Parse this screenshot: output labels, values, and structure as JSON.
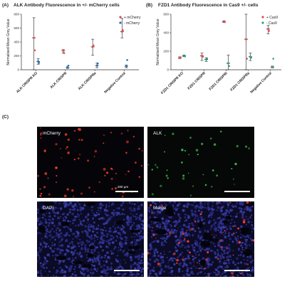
{
  "panels": {
    "a": {
      "letter": "(A)",
      "title": "ALK Antibody Fluorescence in +/- mCherry cells"
    },
    "b": {
      "letter": "(B)",
      "title": "FZD1 Antibody Fluorescence in Cas9 +/- cells"
    },
    "c": {
      "letter": "(C)"
    }
  },
  "chart_data": [
    {
      "type": "scatter",
      "ylabel": "Normalised Mean Grey Value",
      "ylim": [
        0,
        800
      ],
      "yticks": [
        0,
        200,
        400,
        600,
        800
      ],
      "categories": [
        "ALK CRISPR KO",
        "ALK CRISPR",
        "ALK CRISPRa",
        "Negative Control"
      ],
      "legend_position": "top-right",
      "colors": {
        "plus": "#d9534f",
        "minus": "#2a72b5"
      },
      "series": [
        {
          "name": "+ mCherry",
          "key": "plus",
          "means": [
            460,
            275,
            330,
            550
          ],
          "errors": [
            [
              0,
              750
            ],
            [
              240,
              290
            ],
            [
              210,
              440
            ],
            [
              460,
              740
            ]
          ],
          "extras": [
            280,
            240,
            350,
            570
          ]
        },
        {
          "name": "- mCherry",
          "key": "minus",
          "means": [
            120,
            30,
            60,
            50
          ],
          "errors": [
            [
              80,
              160
            ],
            [
              20,
              50
            ],
            [
              30,
              100
            ],
            [
              30,
              70
            ]
          ],
          "extras": [
            100,
            60,
            90,
            140
          ]
        }
      ]
    },
    {
      "type": "scatter",
      "ylabel": "Normalised Mean Grey Value",
      "ylim": [
        0,
        600
      ],
      "yticks": [
        0,
        200,
        400,
        600
      ],
      "categories": [
        "FZD1 CRISPR KO",
        "FZD1 CRISPR",
        "FZD1 CRISPRi",
        "FZD1 CRISPRa",
        "Negative Control"
      ],
      "legend_position": "top-right",
      "colors": {
        "plus": "#d9534f",
        "minus": "#2aa08a"
      },
      "series": [
        {
          "name": "+ Cas9",
          "key": "plus",
          "means": [
            130,
            150,
            520,
            330,
            440
          ],
          "errors": [
            [
              120,
              140
            ],
            [
              100,
              180
            ],
            [
              510,
              530
            ],
            [
              0,
              600
            ],
            [
              390,
              480
            ]
          ],
          "extras": [
            135,
            140,
            515,
            120,
            420
          ]
        },
        {
          "name": "- Cas9",
          "key": "minus",
          "means": [
            150,
            110,
            70,
            140,
            30
          ],
          "errors": [
            [
              140,
              160
            ],
            [
              90,
              130
            ],
            [
              0,
              160
            ],
            [
              100,
              180
            ],
            [
              20,
              40
            ]
          ],
          "extras": [
            145,
            120,
            40,
            130,
            120
          ]
        }
      ]
    }
  ],
  "micrographs": [
    {
      "label": "mCherry",
      "scale_label": "200 µm",
      "bg": "#050509",
      "dot_color": "#ff3b2f",
      "dot_count": 70,
      "nuclei": false
    },
    {
      "label": "ALK",
      "scale_label": "",
      "bg": "#050806",
      "dot_color": "#3fbf55",
      "dot_count": 40,
      "nuclei": false
    },
    {
      "label": "DAPI",
      "scale_label": "",
      "bg": "#0b0b26",
      "dot_color": "#4a4fd0",
      "dot_count": 0,
      "nuclei": true
    },
    {
      "label": "Merge",
      "scale_label": "",
      "bg": "#0b0b26",
      "dot_color": "#ff3b2f",
      "dot_count": 60,
      "nuclei": true
    }
  ]
}
